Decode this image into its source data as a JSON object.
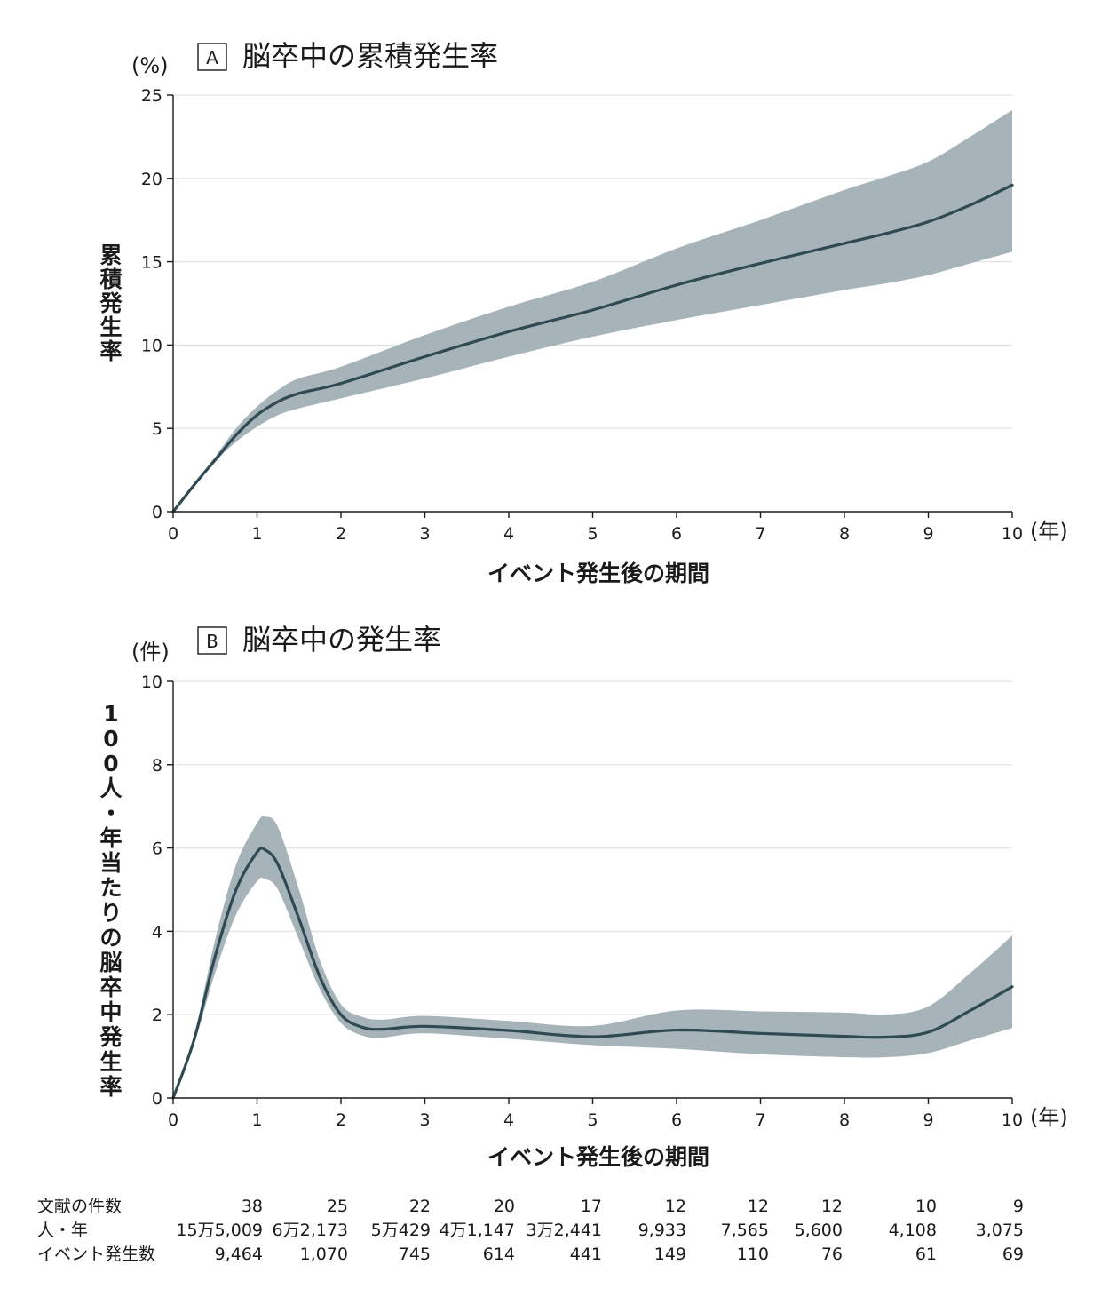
{
  "colors": {
    "band": "#a6b3b8",
    "line": "#2f4a52",
    "grid": "#e2e2e2",
    "axis": "#1a1a1a"
  },
  "chart_data": [
    {
      "type": "line",
      "panel": "A",
      "title": "脳卒中の累積発生率",
      "yunit": "(%)",
      "ylabel": "累積発生率",
      "xlabel": "イベント発生後の期間",
      "xunit": "(年)",
      "xlim": [
        0,
        10
      ],
      "ylim": [
        0,
        25
      ],
      "xticks": [
        "0",
        "1",
        "2",
        "3",
        "4",
        "5",
        "6",
        "7",
        "8",
        "9",
        "10"
      ],
      "yticks": [
        "0",
        "5",
        "10",
        "15",
        "20",
        "25"
      ],
      "grid": true,
      "x": [
        0,
        0.25,
        0.5,
        0.75,
        1,
        1.25,
        1.5,
        2,
        3,
        4,
        5,
        6,
        7,
        8,
        8.5,
        9,
        9.5,
        10
      ],
      "y": [
        0,
        1.6,
        3.1,
        4.6,
        5.8,
        6.6,
        7.1,
        7.7,
        9.3,
        10.8,
        12.1,
        13.6,
        14.9,
        16.1,
        16.7,
        17.4,
        18.4,
        19.6
      ],
      "lower": [
        0,
        1.5,
        3.0,
        4.2,
        5.1,
        5.8,
        6.2,
        6.8,
        8.0,
        9.3,
        10.5,
        11.5,
        12.4,
        13.3,
        13.7,
        14.2,
        14.9,
        15.6
      ],
      "upper": [
        0,
        1.7,
        3.3,
        5.0,
        6.3,
        7.3,
        8.0,
        8.7,
        10.6,
        12.3,
        13.8,
        15.8,
        17.5,
        19.3,
        20.1,
        21.0,
        22.5,
        24.1
      ]
    },
    {
      "type": "line",
      "panel": "B",
      "title": "脳卒中の発生率",
      "yunit": "(件)",
      "ylabel": "100人・年当たりの脳卒中発生率",
      "xlabel": "イベント発生後の期間",
      "xunit": "(年)",
      "xlim": [
        0,
        10
      ],
      "ylim": [
        0,
        10
      ],
      "xticks": [
        "0",
        "1",
        "2",
        "3",
        "4",
        "5",
        "6",
        "7",
        "8",
        "9",
        "10"
      ],
      "yticks": [
        "0",
        "2",
        "4",
        "6",
        "8",
        "10"
      ],
      "grid": true,
      "x": [
        0,
        0.25,
        0.5,
        0.75,
        1,
        1.1,
        1.25,
        1.5,
        1.75,
        2,
        2.25,
        2.5,
        3,
        4,
        5,
        6,
        7,
        8,
        8.5,
        9,
        9.5,
        10
      ],
      "y": [
        0,
        1.4,
        3.4,
        5.0,
        5.9,
        5.95,
        5.6,
        4.3,
        2.9,
        2.0,
        1.7,
        1.65,
        1.72,
        1.62,
        1.47,
        1.63,
        1.55,
        1.48,
        1.46,
        1.58,
        2.1,
        2.67
      ],
      "lower": [
        0,
        1.3,
        3.0,
        4.4,
        5.2,
        5.25,
        5.0,
        3.8,
        2.6,
        1.8,
        1.5,
        1.45,
        1.55,
        1.42,
        1.27,
        1.18,
        1.05,
        0.98,
        0.98,
        1.08,
        1.38,
        1.68
      ],
      "upper": [
        0,
        1.5,
        3.8,
        5.6,
        6.6,
        6.75,
        6.5,
        5.0,
        3.3,
        2.25,
        1.95,
        1.88,
        1.97,
        1.85,
        1.73,
        2.1,
        2.08,
        2.05,
        2.0,
        2.2,
        3.0,
        3.9
      ]
    }
  ],
  "table": {
    "rows": [
      {
        "label": "文献の件数",
        "values": [
          "38",
          "25",
          "22",
          "20",
          "17",
          "12",
          "12",
          "12",
          "10",
          "9"
        ]
      },
      {
        "label": "人・年",
        "values": [
          "15万5,009",
          "6万2,173",
          "5万429",
          "4万1,147",
          "3万2,441",
          "9,933",
          "7,565",
          "5,600",
          "4,108",
          "3,075"
        ]
      },
      {
        "label": "イベント発生数",
        "values": [
          "9,464",
          "1,070",
          "745",
          "614",
          "441",
          "149",
          "110",
          "76",
          "61",
          "69"
        ]
      }
    ]
  }
}
